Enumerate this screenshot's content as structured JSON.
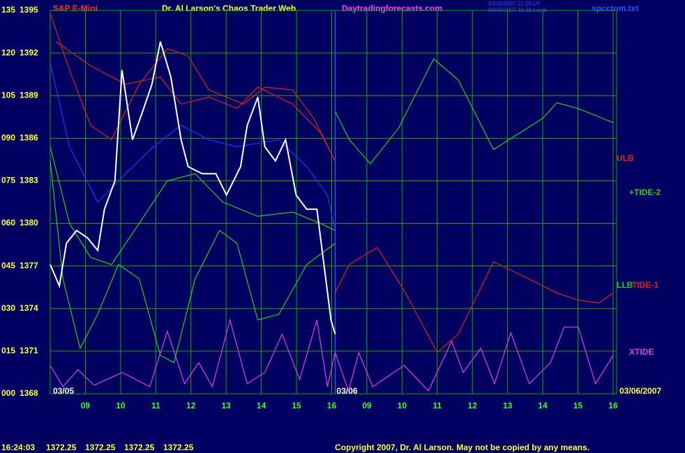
{
  "header": {
    "symbol": "S&P E-Mini",
    "title": "Dr. Al Larson's Chaos Trader Web",
    "site": "Daytradingforecasts.com",
    "stamp": [
      "03/05/2007 21:20 UT",
      "03/05/2007 15:20 Local"
    ],
    "file": "spcctom.txt"
  },
  "chart_data": {
    "type": "line",
    "xlim": [
      8,
      24.1
    ],
    "xticks": [
      {
        "value": 9,
        "label": "09"
      },
      10,
      11,
      12,
      13,
      14,
      15,
      16,
      {
        "value": 17,
        "label": "09"
      },
      {
        "value": 18,
        "label": "10"
      },
      {
        "value": 19,
        "label": "11"
      },
      {
        "value": 20,
        "label": "12"
      },
      {
        "value": 21,
        "label": "13"
      },
      {
        "value": 22,
        "label": "14"
      },
      {
        "value": 23,
        "label": "15"
      },
      {
        "value": 24,
        "label": "16"
      }
    ],
    "ylim": [
      1368,
      1395
    ],
    "yticks": [
      1395,
      1392,
      1389,
      1386,
      1383,
      1380,
      1377,
      1374,
      1371,
      1368
    ],
    "y2lim": [
      0,
      135
    ],
    "y2ticks": [
      135,
      120,
      105,
      {
        "value": 90,
        "label": "090"
      },
      {
        "value": 75,
        "label": "075"
      },
      {
        "value": 60,
        "label": "060"
      },
      {
        "value": 45,
        "label": "045"
      },
      {
        "value": 30,
        "label": "030"
      },
      {
        "value": 15,
        "label": "015"
      },
      {
        "value": 0,
        "label": "000"
      }
    ],
    "grid": true,
    "grid_color": "#00b000",
    "day_break": 16.1,
    "dates": [
      "03/05",
      "03/06",
      "03/06/2007"
    ],
    "series": [
      {
        "color": "#3030ff",
        "x": [
          8.0,
          8.55,
          9.35,
          10.14,
          10.93,
          11.72,
          12.51,
          13.31,
          14.5,
          15.29,
          15.88,
          16.1
        ],
        "values": [
          1391.3,
          1385.4,
          1381.5,
          1383.5,
          1385.4,
          1386.9,
          1385.9,
          1385.4,
          1385.9,
          1384.0,
          1382.0,
          1379.5
        ]
      },
      {
        "color": "#e02020",
        "x": [
          8.16,
          9.15,
          10.14,
          11.13,
          11.72,
          12.51,
          13.31,
          13.9,
          14.89,
          15.68,
          16.1
        ],
        "values": [
          1392.8,
          1391.1,
          1389.8,
          1390.3,
          1388.4,
          1388.9,
          1388.1,
          1389.6,
          1388.4,
          1386.4,
          1384.4
        ]
      },
      {
        "color": "#20d020",
        "x": [
          8.0,
          8.55,
          9.15,
          9.74,
          10.53,
          11.33,
          12.12,
          12.91,
          13.9,
          14.89,
          15.68,
          16.1
        ],
        "values": [
          1385.4,
          1380.0,
          1377.6,
          1377.1,
          1380.0,
          1383.0,
          1383.5,
          1381.5,
          1380.5,
          1380.8,
          1380.0,
          1379.5
        ]
      },
      {
        "name": "ULB",
        "color": "#e02020",
        "x": [
          8.0,
          8.55,
          9.15,
          9.74,
          10.53,
          11.33,
          11.92,
          12.51,
          13.5,
          14.1,
          14.89,
          15.49,
          16.1
        ],
        "values": [
          1394.8,
          1390.8,
          1386.9,
          1385.9,
          1389.8,
          1392.3,
          1391.8,
          1389.4,
          1388.4,
          1389.6,
          1389.4,
          1387.4,
          1384.4
        ]
      },
      {
        "name": "LLB",
        "color": "#20d020",
        "x": [
          8.0,
          8.36,
          8.85,
          9.35,
          9.94,
          10.53,
          11.13,
          11.52,
          12.12,
          12.81,
          13.31,
          13.9,
          14.5,
          15.29,
          16.1
        ],
        "values": [
          1384.4,
          1376.1,
          1371.2,
          1373.6,
          1377.1,
          1376.1,
          1370.7,
          1370.2,
          1376.1,
          1379.5,
          1378.6,
          1373.2,
          1373.6,
          1377.1,
          1378.6
        ]
      },
      {
        "color": "#ffffff",
        "x": [
          8.0,
          8.26,
          8.46,
          8.75,
          9.05,
          9.35,
          9.54,
          9.84,
          10.04,
          10.34,
          10.63,
          10.89,
          11.13,
          11.43,
          11.72,
          11.92,
          12.32,
          12.71,
          13.01,
          13.41,
          13.6,
          13.9,
          14.1,
          14.4,
          14.69,
          14.99,
          15.29,
          15.58,
          15.78,
          15.98,
          16.1
        ],
        "values": [
          1377.1,
          1375.6,
          1378.6,
          1379.5,
          1379.0,
          1378.1,
          1381.0,
          1383.0,
          1390.8,
          1385.9,
          1387.9,
          1389.8,
          1392.8,
          1390.3,
          1385.9,
          1384.0,
          1383.5,
          1383.5,
          1382.0,
          1384.0,
          1386.9,
          1388.9,
          1385.4,
          1384.4,
          1385.9,
          1382.0,
          1381.0,
          1381.0,
          1377.1,
          1373.2,
          1372.2
        ]
      },
      {
        "name": "+TIDE-2",
        "color": "#20d020",
        "x": [
          16.1,
          16.5,
          17.1,
          17.9,
          18.9,
          19.6,
          20.6,
          22.0,
          22.4,
          23.0,
          24.0
        ],
        "values": [
          1387.9,
          1385.9,
          1384.2,
          1386.7,
          1391.6,
          1390.1,
          1385.2,
          1387.4,
          1388.5,
          1388.1,
          1387.1
        ]
      },
      {
        "name": "TIDE-1",
        "color": "#e02020",
        "x": [
          16.1,
          16.5,
          17.3,
          18.1,
          19.0,
          19.6,
          20.6,
          21.6,
          22.4,
          23.0,
          23.6,
          24.0
        ],
        "values": [
          1375.1,
          1377.1,
          1378.3,
          1375.1,
          1370.9,
          1372.2,
          1377.3,
          1376.1,
          1375.1,
          1374.6,
          1374.4,
          1375.1
        ]
      },
      {
        "name": "XTIDE",
        "color": "#e040e0",
        "x": [
          8.0,
          8.36,
          8.79,
          9.25,
          10.04,
          10.83,
          11.33,
          11.82,
          12.22,
          12.61,
          13.11,
          13.6,
          14.1,
          14.59,
          15.09,
          15.58,
          15.88,
          16.1,
          16.48,
          16.77,
          17.17,
          18.06,
          18.75,
          19.41,
          19.74,
          20.24,
          20.63,
          21.09,
          21.62,
          22.22,
          22.61,
          23.01,
          23.5,
          24.0
        ],
        "values": [
          1370.0,
          1368.5,
          1369.7,
          1368.6,
          1369.5,
          1368.5,
          1372.4,
          1368.7,
          1370.2,
          1368.5,
          1373.2,
          1368.7,
          1369.5,
          1372.2,
          1369.0,
          1373.2,
          1368.5,
          1370.9,
          1368.2,
          1370.9,
          1368.5,
          1370.0,
          1368.2,
          1371.7,
          1369.5,
          1371.2,
          1368.7,
          1372.3,
          1368.7,
          1370.2,
          1372.7,
          1372.7,
          1368.7,
          1370.7
        ]
      }
    ]
  },
  "footer": {
    "time": "16:24:03",
    "prices": [
      1372.25,
      1372.25,
      1372.25,
      1372.25
    ],
    "copyright": "Copyright 2007, Dr. Al Larson. May not be copied by any means."
  }
}
